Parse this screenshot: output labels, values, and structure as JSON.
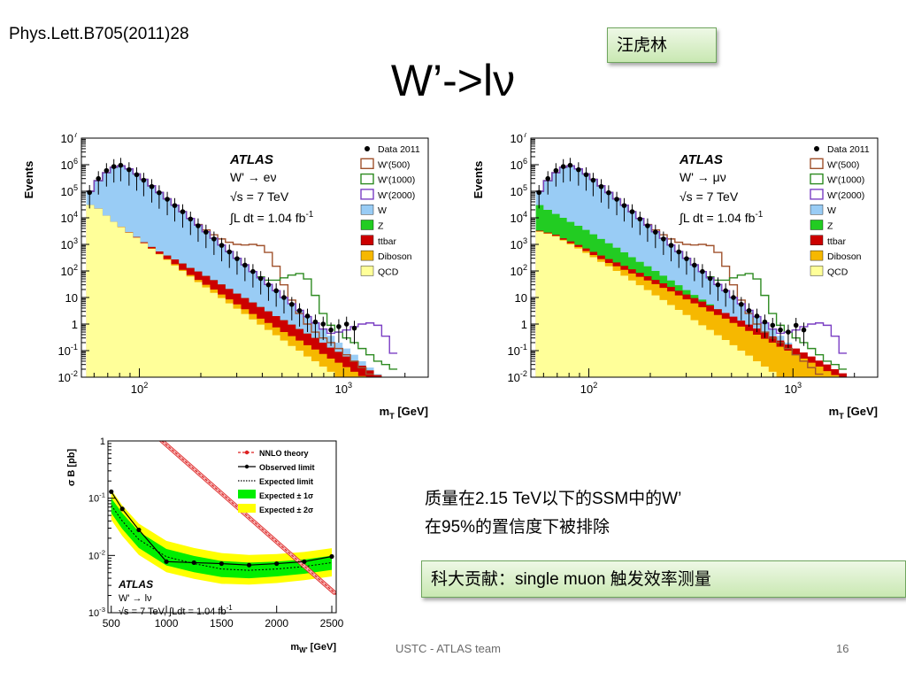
{
  "slide": {
    "reference": "Phys.Lett.B705(2011)28",
    "title": "W’->lν",
    "author": "汪虎林",
    "result_line1": "质量在2.15 TeV以下的SSM中的W’",
    "result_line2": "在95%的置信度下被排除",
    "contribution": "科大贡献：single muon 触发效率测量",
    "footer": "USTC - ATLAS team",
    "page": "16"
  },
  "chart_data": [
    {
      "type": "area",
      "panel": "electron",
      "ylabel": "Events",
      "xlabel": "m<sub>T</sub> [GeV]",
      "xlabel_text": "mT [GeV]",
      "xscale": "log",
      "yscale": "log",
      "xlim": [
        52,
        2600
      ],
      "ylim": [
        0.01,
        10000000
      ],
      "ytick_labels": [
        "10-2",
        "10-1",
        "1",
        "10",
        "102",
        "103",
        "104",
        "105",
        "106",
        "107"
      ],
      "xtick_labels": [
        "102",
        "103"
      ],
      "atlas_label": "ATLAS",
      "channel": "W' → eν",
      "energy": "√s = 7 TeV",
      "lumi": "∫L dt = 1.04 fb-1",
      "legend": [
        "Data 2011",
        "W'(500)",
        "W'(1000)",
        "W'(2000)",
        "W",
        "Z",
        "ttbar",
        "Diboson",
        "QCD"
      ],
      "colors": {
        "W": "#99ccf5",
        "Z": "#22cc22",
        "ttbar": "#cc0000",
        "Diboson": "#f6b800",
        "QCD": "#ffff99",
        "W500": "#a0522d",
        "W1000": "#2e8b22",
        "W2000": "#7b3fc4",
        "data": "#000000"
      },
      "bin_edges": [
        55,
        60,
        66,
        72,
        78,
        85,
        93,
        101,
        110,
        120,
        131,
        143,
        156,
        170,
        186,
        203,
        222,
        242,
        264,
        288,
        315,
        344,
        376,
        410,
        448,
        489,
        534,
        583,
        637,
        696,
        760,
        830,
        906,
        990,
        1081,
        1180,
        1289,
        1408,
        1538,
        1680,
        1835,
        2004
      ],
      "stack": {
        "QCD": [
          30000,
          22000,
          12000,
          7000,
          4500,
          2800,
          1800,
          1100,
          680,
          420,
          260,
          160,
          100,
          62,
          38,
          24,
          15,
          9.5,
          6,
          3.8,
          2.4,
          1.5,
          0.95,
          0.6,
          0.38,
          0.24,
          0.15,
          0.1,
          0.06,
          0.04,
          0.025,
          0.016,
          0.01,
          0.01,
          0.01,
          0.01,
          0.01,
          0.01,
          0.01,
          0.01,
          0.01
        ],
        "Diboson": [
          30000,
          22000,
          12000,
          7000,
          4500,
          2800,
          1800,
          1100,
          700,
          440,
          280,
          180,
          110,
          70,
          46,
          30,
          20,
          13,
          8.5,
          5.5,
          3.6,
          2.4,
          1.6,
          1.1,
          0.75,
          0.5,
          0.35,
          0.24,
          0.16,
          0.11,
          0.075,
          0.05,
          0.035,
          0.024,
          0.016,
          0.011,
          0.01,
          0.01,
          0.01,
          0.01,
          0.01
        ],
        "ttbar": [
          30100,
          22100,
          12100,
          7100,
          4600,
          2900,
          1900,
          1200,
          800,
          540,
          380,
          270,
          190,
          130,
          95,
          65,
          45,
          31,
          21,
          14,
          9.5,
          6.5,
          4.4,
          3,
          2,
          1.4,
          0.95,
          0.65,
          0.44,
          0.3,
          0.2,
          0.13,
          0.09,
          0.06,
          0.04,
          0.027,
          0.018,
          0.012,
          0.01,
          0.01,
          0.01
        ],
        "Z": [
          30100,
          22100,
          12100,
          7100,
          4600,
          2900,
          1900,
          1200,
          800,
          540,
          380,
          270,
          190,
          130,
          95,
          65,
          45,
          31,
          21,
          14,
          9.5,
          6.5,
          4.4,
          3,
          2,
          1.4,
          0.95,
          0.65,
          0.44,
          0.3,
          0.2,
          0.13,
          0.09,
          0.06,
          0.04,
          0.027,
          0.018,
          0.012,
          0.01,
          0.01,
          0.01
        ],
        "W": [
          100000,
          250000,
          500000,
          800000,
          900000,
          700000,
          450000,
          280000,
          160000,
          90000,
          52000,
          30000,
          17000,
          9500,
          5300,
          3000,
          1700,
          950,
          540,
          300,
          170,
          95,
          55,
          31,
          18,
          10,
          5.8,
          3.3,
          1.9,
          1.1,
          0.62,
          0.36,
          0.2,
          0.12,
          0.07,
          0.04,
          0.023,
          0.013,
          0.01,
          0.01,
          0.01
        ]
      },
      "signal": {
        "W'(500)": [
          100000,
          250000,
          500000,
          800000,
          900000,
          700000,
          450000,
          280000,
          160000,
          90000,
          52000,
          30000,
          17000,
          9500,
          5600,
          3500,
          2300,
          1600,
          1200,
          1000,
          950,
          1000,
          900,
          500,
          150,
          30,
          8,
          2.5,
          1,
          0.5,
          0.3,
          0.2,
          0.12,
          0.07,
          0.04,
          0.023,
          0.013,
          0.01,
          0.01,
          0.01,
          0.01
        ],
        "W'(1000)": [
          100000,
          250000,
          500000,
          800000,
          900000,
          700000,
          450000,
          280000,
          160000,
          90000,
          52000,
          30000,
          17000,
          9500,
          5300,
          3000,
          1700,
          950,
          540,
          300,
          170,
          95,
          60,
          45,
          45,
          55,
          70,
          80,
          50,
          12,
          2.5,
          0.9,
          0.5,
          0.3,
          0.2,
          0.12,
          0.07,
          0.04,
          0.03,
          0.02,
          0.01
        ],
        "W'(2000)": [
          100000,
          250000,
          500000,
          800000,
          900000,
          700000,
          450000,
          280000,
          160000,
          90000,
          52000,
          30000,
          17000,
          9500,
          5300,
          3000,
          1700,
          950,
          540,
          300,
          170,
          95,
          55,
          31,
          18,
          10,
          5.8,
          3.3,
          1.9,
          1.1,
          0.65,
          0.45,
          0.5,
          0.6,
          0.8,
          1,
          1.1,
          0.9,
          0.35,
          0.08,
          0.01
        ]
      },
      "data": {
        "x": [
          57,
          63,
          69,
          75,
          81,
          89,
          97,
          105,
          115,
          125,
          137,
          149,
          163,
          178,
          194,
          212,
          232,
          253,
          276,
          301,
          329,
          360,
          393,
          429,
          468,
          511,
          558,
          609,
          666,
          728,
          795,
          868,
          948,
          1035,
          1130
        ],
        "y": [
          90000,
          300000,
          600000,
          850000,
          950000,
          650000,
          420000,
          260000,
          150000,
          88000,
          50000,
          29000,
          17000,
          9000,
          5000,
          2900,
          1600,
          920,
          520,
          290,
          165,
          95,
          52,
          30,
          18,
          10,
          5.5,
          3.2,
          2,
          1.2,
          1,
          0.6,
          0.8,
          1,
          0.7
        ]
      }
    },
    {
      "type": "area",
      "panel": "muon",
      "ylabel": "Events",
      "xlabel": "m<sub>T</sub> [GeV]",
      "xlabel_text": "mT [GeV]",
      "xscale": "log",
      "yscale": "log",
      "xlim": [
        52,
        2600
      ],
      "ylim": [
        0.01,
        10000000
      ],
      "ytick_labels": [
        "10-2",
        "10-1",
        "1",
        "10",
        "102",
        "103",
        "104",
        "105",
        "106",
        "107"
      ],
      "xtick_labels": [
        "102",
        "103"
      ],
      "atlas_label": "ATLAS",
      "channel": "W' → μν",
      "energy": "√s = 7 TeV",
      "lumi": "∫L dt = 1.04 fb-1",
      "legend": [
        "Data 2011",
        "W'(500)",
        "W'(1000)",
        "W'(2000)",
        "W",
        "Z",
        "ttbar",
        "Diboson",
        "QCD"
      ],
      "colors": {
        "W": "#99ccf5",
        "Z": "#22cc22",
        "ttbar": "#cc0000",
        "Diboson": "#f6b800",
        "QCD": "#ffff99",
        "W500": "#a0522d",
        "W1000": "#2e8b22",
        "W2000": "#7b3fc4",
        "data": "#000000"
      },
      "bin_edges": [
        55,
        60,
        66,
        72,
        78,
        85,
        93,
        101,
        110,
        120,
        131,
        143,
        156,
        170,
        186,
        203,
        222,
        242,
        264,
        288,
        315,
        344,
        376,
        410,
        448,
        489,
        534,
        583,
        637,
        696,
        760,
        830,
        906,
        990,
        1081,
        1180,
        1289,
        1408,
        1538,
        1680,
        1835,
        2004
      ],
      "stack": {
        "QCD": [
          3000,
          2500,
          2000,
          1400,
          1000,
          700,
          480,
          330,
          220,
          150,
          100,
          66,
          44,
          29,
          19,
          12,
          8,
          5.2,
          3.4,
          2.2,
          1.4,
          0.9,
          0.6,
          0.38,
          0.25,
          0.16,
          0.1,
          0.065,
          0.04,
          0.025,
          0.016,
          0.01,
          0.01,
          0.01,
          0.01,
          0.01,
          0.01,
          0.01,
          0.01,
          0.01,
          0.01
        ],
        "Diboson": [
          3100,
          2600,
          2100,
          1500,
          1100,
          800,
          560,
          400,
          280,
          200,
          150,
          110,
          80,
          60,
          44,
          32,
          23,
          17,
          12,
          8.5,
          6,
          4.3,
          3,
          2.2,
          1.6,
          1.1,
          0.8,
          0.55,
          0.4,
          0.28,
          0.2,
          0.14,
          0.1,
          0.07,
          0.05,
          0.035,
          0.025,
          0.017,
          0.012,
          0.01,
          0.01
        ],
        "ttbar": [
          3300,
          2800,
          2300,
          1700,
          1300,
          950,
          700,
          520,
          380,
          280,
          210,
          155,
          115,
          85,
          63,
          46,
          34,
          25,
          18,
          13,
          9.5,
          7,
          5,
          3.6,
          2.6,
          1.9,
          1.35,
          0.95,
          0.68,
          0.48,
          0.34,
          0.24,
          0.17,
          0.12,
          0.085,
          0.06,
          0.042,
          0.03,
          0.02,
          0.014,
          0.01
        ],
        "Z": [
          30000,
          20000,
          14000,
          10000,
          7000,
          5000,
          3500,
          2400,
          1600,
          1100,
          750,
          500,
          330,
          220,
          150,
          100,
          66,
          44,
          29,
          19,
          12.5,
          8.3,
          5.5,
          3.6,
          2.4,
          1.6,
          1.05,
          0.7,
          0.46,
          0.3,
          0.2,
          0.13,
          0.09,
          0.06,
          0.04,
          0.026,
          0.017,
          0.012,
          0.01,
          0.01,
          0.01
        ],
        "W": [
          100000,
          250000,
          500000,
          800000,
          900000,
          700000,
          450000,
          280000,
          160000,
          90000,
          52000,
          30000,
          17000,
          9500,
          5300,
          3000,
          1700,
          950,
          540,
          300,
          170,
          95,
          55,
          31,
          18,
          10,
          5.8,
          3.3,
          1.9,
          1.1,
          0.62,
          0.36,
          0.2,
          0.12,
          0.07,
          0.04,
          0.023,
          0.013,
          0.01,
          0.01,
          0.01
        ]
      },
      "signal": {
        "W'(500)": [
          100000,
          250000,
          500000,
          800000,
          900000,
          700000,
          450000,
          280000,
          160000,
          90000,
          52000,
          30000,
          17000,
          9500,
          5600,
          3500,
          2300,
          1600,
          1200,
          1000,
          950,
          1000,
          900,
          500,
          150,
          30,
          8,
          2.5,
          1,
          0.5,
          0.3,
          0.2,
          0.12,
          0.07,
          0.04,
          0.023,
          0.013,
          0.01,
          0.01,
          0.01,
          0.01
        ],
        "W'(1000)": [
          100000,
          250000,
          500000,
          800000,
          900000,
          700000,
          450000,
          280000,
          160000,
          90000,
          52000,
          30000,
          17000,
          9500,
          5300,
          3000,
          1700,
          950,
          540,
          300,
          170,
          95,
          60,
          45,
          45,
          55,
          70,
          80,
          50,
          12,
          2.5,
          0.9,
          0.5,
          0.3,
          0.2,
          0.12,
          0.07,
          0.04,
          0.03,
          0.02,
          0.01
        ],
        "W'(2000)": [
          100000,
          250000,
          500000,
          800000,
          900000,
          700000,
          450000,
          280000,
          160000,
          90000,
          52000,
          30000,
          17000,
          9500,
          5300,
          3000,
          1700,
          950,
          540,
          300,
          170,
          95,
          55,
          31,
          18,
          10,
          5.8,
          3.3,
          1.9,
          1.1,
          0.65,
          0.45,
          0.5,
          0.6,
          0.8,
          1,
          1.1,
          0.9,
          0.35,
          0.08,
          0.01
        ]
      },
      "data": {
        "x": [
          57,
          63,
          69,
          75,
          81,
          89,
          97,
          105,
          115,
          125,
          137,
          149,
          163,
          178,
          194,
          212,
          232,
          253,
          276,
          301,
          329,
          360,
          393,
          429,
          468,
          511,
          558,
          609,
          666,
          728,
          795,
          868,
          948,
          1035,
          1130
        ],
        "y": [
          90000,
          300000,
          600000,
          850000,
          950000,
          650000,
          420000,
          260000,
          150000,
          88000,
          50000,
          29000,
          17000,
          9000,
          5000,
          2900,
          1600,
          920,
          520,
          290,
          165,
          95,
          52,
          30,
          18,
          10,
          5.5,
          3.2,
          2,
          1.2,
          0.9,
          0.6,
          0.5,
          0.9,
          0.6
        ]
      }
    },
    {
      "type": "line",
      "panel": "limit",
      "ylabel": "σ B [pb]",
      "xlabel": "m<sub>W'</sub> [GeV]",
      "xlabel_text": "mW' [GeV]",
      "yscale": "log",
      "xlim": [
        470,
        2540
      ],
      "ylim": [
        0.001,
        1
      ],
      "xtick_labels": [
        "500",
        "1000",
        "1500",
        "2000",
        "2500"
      ],
      "ytick_labels": [
        "10-3",
        "10-2",
        "10-1",
        "1"
      ],
      "atlas_label": "ATLAS",
      "channel": "W' → lν",
      "energy_lumi": "√s = 7 TeV, ∫Ldt = 1.04 fb-1",
      "legend": [
        "NNLO theory",
        "Observed limit",
        "Expected  limit",
        "Expected ± 1σ",
        "Expected ± 2σ"
      ],
      "colors": {
        "theory": "#dd2222",
        "observed": "#000000",
        "band1": "#00ee00",
        "band2": "#ffff00"
      },
      "x": [
        500,
        600,
        750,
        1000,
        1250,
        1500,
        1750,
        2000,
        2250,
        2500
      ],
      "observed": [
        0.13,
        0.065,
        0.028,
        0.0078,
        0.0075,
        0.0072,
        0.0068,
        0.0072,
        0.0078,
        0.0096
      ],
      "expected": [
        0.075,
        0.04,
        0.019,
        0.0095,
        0.0072,
        0.0058,
        0.0055,
        0.0058,
        0.0064,
        0.0075
      ],
      "band1_lo": [
        0.055,
        0.029,
        0.0135,
        0.0067,
        0.0051,
        0.0042,
        0.004,
        0.0043,
        0.0048,
        0.0056
      ],
      "band1_hi": [
        0.1,
        0.055,
        0.026,
        0.013,
        0.0098,
        0.008,
        0.0075,
        0.0078,
        0.0085,
        0.0099
      ],
      "band2_lo": [
        0.042,
        0.022,
        0.0102,
        0.0051,
        0.0039,
        0.0032,
        0.0031,
        0.0033,
        0.0037,
        0.0043
      ],
      "band2_hi": [
        0.14,
        0.075,
        0.036,
        0.018,
        0.0135,
        0.011,
        0.0102,
        0.0106,
        0.0115,
        0.0134
      ],
      "theory": {
        "x": [
          960,
          2540
        ],
        "y": [
          1.0,
          0.0021
        ]
      }
    }
  ]
}
